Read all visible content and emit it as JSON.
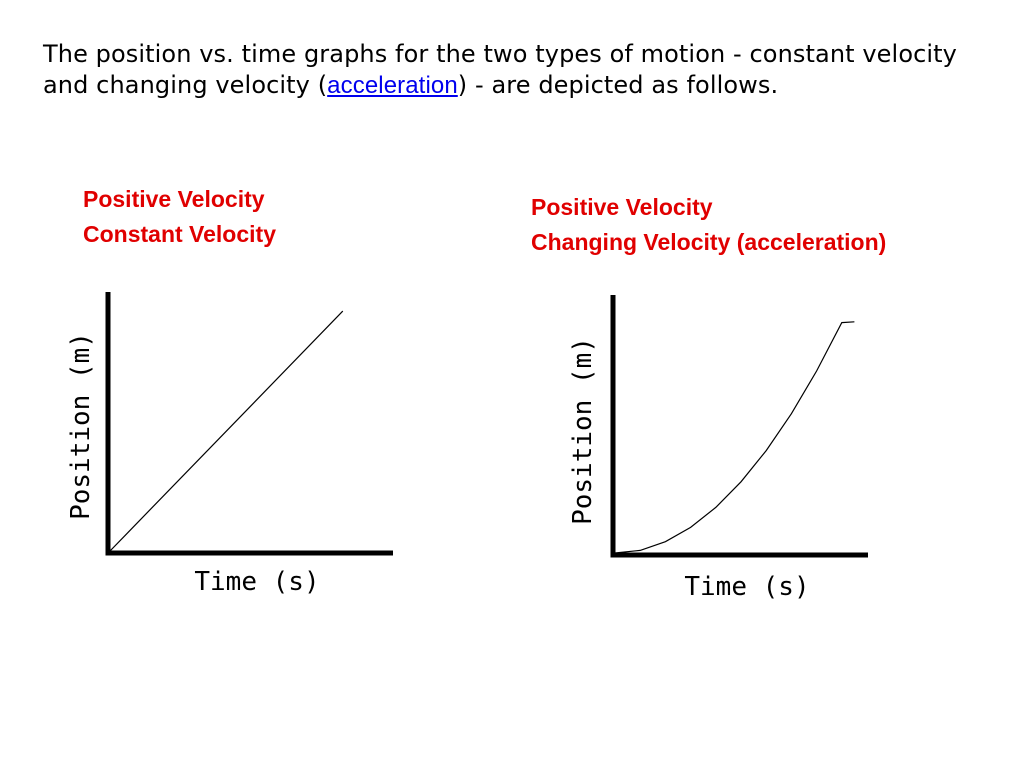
{
  "intro": {
    "before_link": "The position vs. time graphs for the two types of motion - constant velocity and changing velocity (",
    "link_text": "acceleration",
    "after_link": ") - are depicted as follows."
  },
  "colors": {
    "title_color": "#e00000",
    "link_color": "#0000ee",
    "line_color": "#000000"
  },
  "chart_data": [
    {
      "type": "line",
      "title_lines": [
        "Positive Velocity",
        "Constant Velocity"
      ],
      "xlabel": "Time (s)",
      "ylabel": "Position (m)",
      "xlim": [
        0,
        10
      ],
      "ylim": [
        0,
        10
      ],
      "grid": false,
      "series": [
        {
          "name": "position",
          "x": [
            0,
            8
          ],
          "y": [
            0,
            9.3
          ]
        }
      ]
    },
    {
      "type": "line",
      "title_lines": [
        "Positive Velocity",
        "Changing Velocity (acceleration)"
      ],
      "xlabel": "Time (s)",
      "ylabel": "Position (m)",
      "xlim": [
        0,
        10
      ],
      "ylim": [
        0,
        10
      ],
      "grid": false,
      "series": [
        {
          "name": "position",
          "x": [
            0,
            1,
            2,
            3,
            4,
            5,
            6,
            7,
            8,
            9,
            9.5
          ],
          "y": [
            0,
            0.1,
            0.44,
            1.0,
            1.78,
            2.78,
            4.0,
            5.44,
            7.11,
            9.0,
            9.03
          ]
        }
      ]
    }
  ]
}
